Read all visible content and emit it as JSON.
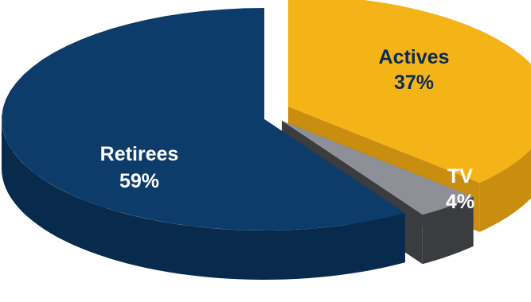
{
  "chart_data": {
    "type": "pie",
    "style": "3d-exploded",
    "title": "",
    "slices": [
      {
        "label": "Actives",
        "value": 37,
        "value_label": "37%",
        "color": "#f4b418",
        "side_color": "#c98e10"
      },
      {
        "label": "TV",
        "value": 4,
        "value_label": "4%",
        "color": "#8d9096",
        "side_color": "#3a3c40"
      },
      {
        "label": "Retirees",
        "value": 59,
        "value_label": "59%",
        "color": "#0d3c6a",
        "side_color": "#082a4c"
      }
    ],
    "legend": "none",
    "labels_on_slices": true
  }
}
